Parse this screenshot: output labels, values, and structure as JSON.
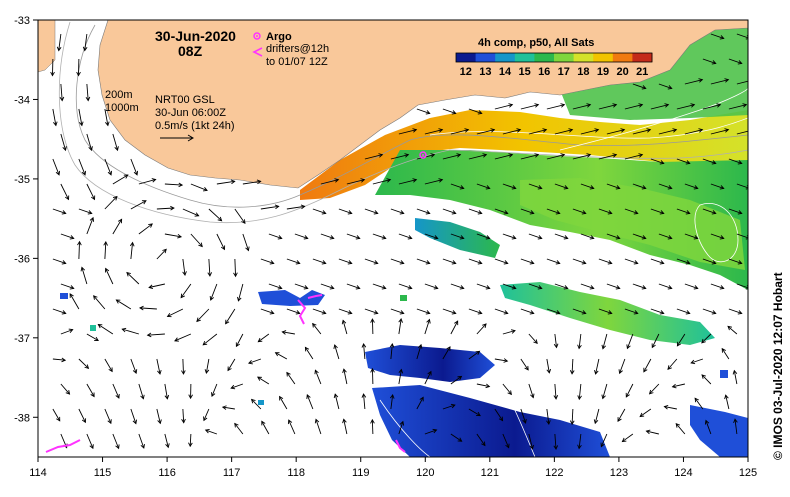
{
  "header": {
    "date": "30-Jun-2020",
    "time": "08Z"
  },
  "legend": {
    "argo_label": "Argo",
    "drifter_label_1": "drifters@12h",
    "drifter_label_2": "to 01/07 12Z",
    "isobath_200": "200m",
    "isobath_1000": "1000m",
    "product_line_1": "NRT00 GSL",
    "product_line_2": "30-Jun 06:00Z",
    "scale_label": "0.5m/s (1kt 24h)",
    "colorbar_title": "4h comp, p50, All Sats",
    "colorbar_ticks": [
      "12",
      "13",
      "14",
      "15",
      "16",
      "17",
      "18",
      "19",
      "20",
      "21"
    ],
    "colorbar_colors": [
      "#0b1a8f",
      "#1f4fd8",
      "#1596c9",
      "#1fc19a",
      "#2cb84c",
      "#7fd63d",
      "#d4e22a",
      "#f2c400",
      "#f07a10",
      "#c42a1a"
    ]
  },
  "axes": {
    "x_ticks": [
      "114",
      "115",
      "116",
      "117",
      "118",
      "119",
      "120",
      "121",
      "122",
      "123",
      "124",
      "125"
    ],
    "y_ticks": [
      "-33",
      "-34",
      "-35",
      "-36",
      "-37",
      "-38"
    ],
    "x_range": [
      114,
      125
    ],
    "y_range": [
      -38.5,
      -33
    ]
  },
  "credit": "© IMOS 03-Jul-2020 12:07 Hobart",
  "colors": {
    "land": "#f9c89a",
    "argo": "#ff33ff",
    "drifter": "#ff33ff"
  }
}
